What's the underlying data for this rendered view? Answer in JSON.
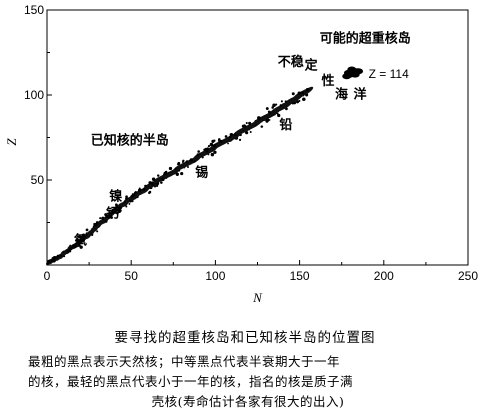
{
  "chart_data": {
    "type": "scatter",
    "xlabel": "N",
    "ylabel": "Z",
    "xlim": [
      0,
      250
    ],
    "ylim": [
      0,
      150
    ],
    "xticks": [
      0,
      50,
      100,
      150,
      200,
      250
    ],
    "yticks": [
      50,
      100,
      150
    ],
    "grid": false,
    "series": [
      {
        "points": [
          [
            2,
            2
          ],
          [
            4,
            3
          ],
          [
            6,
            4
          ],
          [
            8,
            5
          ],
          [
            10,
            7
          ],
          [
            12,
            8
          ],
          [
            14,
            10
          ],
          [
            16,
            11
          ],
          [
            18,
            12
          ],
          [
            20,
            14
          ],
          [
            22,
            16
          ],
          [
            24,
            17
          ],
          [
            26,
            19
          ],
          [
            28,
            21
          ],
          [
            30,
            23
          ],
          [
            32,
            25
          ],
          [
            34,
            26
          ],
          [
            36,
            28
          ],
          [
            38,
            30
          ],
          [
            40,
            32
          ],
          [
            42,
            33
          ],
          [
            44,
            35
          ],
          [
            46,
            36
          ],
          [
            48,
            38
          ],
          [
            50,
            39
          ],
          [
            52,
            40
          ],
          [
            54,
            42
          ],
          [
            56,
            43
          ],
          [
            58,
            44
          ],
          [
            60,
            46
          ],
          [
            62,
            47
          ],
          [
            64,
            48
          ],
          [
            66,
            50
          ],
          [
            68,
            51
          ],
          [
            70,
            52
          ],
          [
            72,
            53
          ],
          [
            74,
            54
          ],
          [
            76,
            55
          ],
          [
            78,
            57
          ],
          [
            80,
            58
          ],
          [
            82,
            59
          ],
          [
            84,
            60
          ],
          [
            86,
            61
          ],
          [
            88,
            62
          ],
          [
            90,
            64
          ],
          [
            92,
            65
          ],
          [
            94,
            66
          ],
          [
            96,
            67
          ],
          [
            98,
            68
          ],
          [
            100,
            70
          ],
          [
            102,
            71
          ],
          [
            104,
            72
          ],
          [
            106,
            73
          ],
          [
            108,
            74
          ],
          [
            110,
            75
          ],
          [
            112,
            76
          ],
          [
            114,
            78
          ],
          [
            116,
            79
          ],
          [
            118,
            80
          ],
          [
            120,
            81
          ],
          [
            122,
            82
          ],
          [
            124,
            83
          ],
          [
            126,
            85
          ],
          [
            128,
            86
          ],
          [
            130,
            87
          ],
          [
            132,
            88
          ],
          [
            134,
            89
          ],
          [
            136,
            91
          ],
          [
            138,
            92
          ],
          [
            140,
            93
          ],
          [
            142,
            94
          ],
          [
            144,
            96
          ],
          [
            146,
            97
          ],
          [
            148,
            98
          ],
          [
            150,
            100
          ],
          [
            152,
            101
          ],
          [
            154,
            102
          ]
        ]
      },
      {
        "points": [
          [
            178,
            111
          ],
          [
            180,
            112
          ],
          [
            182,
            113
          ],
          [
            184,
            114
          ],
          [
            179,
            113
          ],
          [
            183,
            112
          ],
          [
            181,
            115
          ],
          [
            185,
            114
          ]
        ]
      }
    ],
    "annotations": [
      {
        "text": "可能的超重核岛",
        "x": 162,
        "y": 131
      },
      {
        "text": "不稳",
        "x": 137,
        "y": 117
      },
      {
        "text": "定",
        "x": 153,
        "y": 115
      },
      {
        "text": "性",
        "x": 163,
        "y": 106
      },
      {
        "text": "海",
        "x": 171,
        "y": 98
      },
      {
        "text": "洋",
        "x": 182,
        "y": 98
      },
      {
        "text": "Z = 114",
        "x": 191,
        "y": 110
      },
      {
        "text": "铅",
        "x": 138,
        "y": 80
      },
      {
        "text": "已知核的半岛",
        "x": 26,
        "y": 71
      },
      {
        "text": "锡",
        "x": 88,
        "y": 52
      },
      {
        "text": "镍",
        "x": 37,
        "y": 38
      },
      {
        "text": "钙",
        "x": 35,
        "y": 28
      },
      {
        "text": "氧",
        "x": 16,
        "y": 12
      }
    ]
  },
  "caption": {
    "title": "要寻找的超重核岛和已知核半岛的位置图",
    "line1": "最粗的黑点表示天然核；中等黑点代表半衰期大于一年",
    "line2": "的核，最轻的黑点代表小于一年的核，指名的核是质子满",
    "line3": "壳核(寿命估计各家有很大的出入)"
  }
}
